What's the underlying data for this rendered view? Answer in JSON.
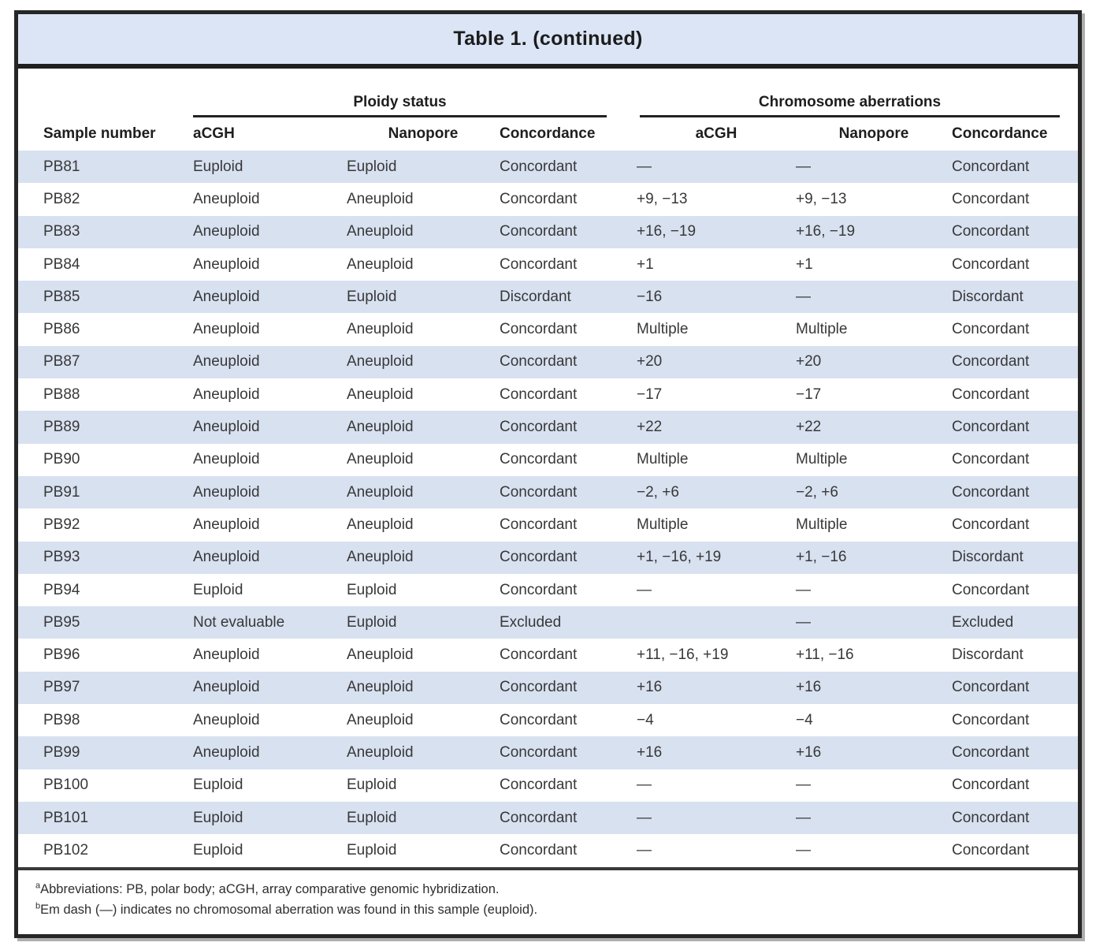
{
  "title": "Table 1. (continued)",
  "table": {
    "group_headers": [
      "Ploidy status",
      "Chromosome aberrations"
    ],
    "columns": [
      "Sample number",
      "aCGH",
      "Nanopore",
      "Concordance",
      "aCGH",
      "Nanopore",
      "Concordance"
    ],
    "rows": [
      [
        "PB81",
        "Euploid",
        "Euploid",
        "Concordant",
        "—",
        "—",
        "Concordant"
      ],
      [
        "PB82",
        "Aneuploid",
        "Aneuploid",
        "Concordant",
        "+9, −13",
        "+9, −13",
        "Concordant"
      ],
      [
        "PB83",
        "Aneuploid",
        "Aneuploid",
        "Concordant",
        "+16, −19",
        "+16, −19",
        "Concordant"
      ],
      [
        "PB84",
        "Aneuploid",
        "Aneuploid",
        "Concordant",
        "+1",
        "+1",
        "Concordant"
      ],
      [
        "PB85",
        "Aneuploid",
        "Euploid",
        "Discordant",
        "−16",
        "—",
        "Discordant"
      ],
      [
        "PB86",
        "Aneuploid",
        "Aneuploid",
        "Concordant",
        "Multiple",
        "Multiple",
        "Concordant"
      ],
      [
        "PB87",
        "Aneuploid",
        "Aneuploid",
        "Concordant",
        "+20",
        "+20",
        "Concordant"
      ],
      [
        "PB88",
        "Aneuploid",
        "Aneuploid",
        "Concordant",
        "−17",
        "−17",
        "Concordant"
      ],
      [
        "PB89",
        "Aneuploid",
        "Aneuploid",
        "Concordant",
        "+22",
        "+22",
        "Concordant"
      ],
      [
        "PB90",
        "Aneuploid",
        "Aneuploid",
        "Concordant",
        "Multiple",
        "Multiple",
        "Concordant"
      ],
      [
        "PB91",
        "Aneuploid",
        "Aneuploid",
        "Concordant",
        "−2, +6",
        "−2, +6",
        "Concordant"
      ],
      [
        "PB92",
        "Aneuploid",
        "Aneuploid",
        "Concordant",
        "Multiple",
        "Multiple",
        "Concordant"
      ],
      [
        "PB93",
        "Aneuploid",
        "Aneuploid",
        "Concordant",
        "+1, −16, +19",
        "+1, −16",
        "Discordant"
      ],
      [
        "PB94",
        "Euploid",
        "Euploid",
        "Concordant",
        "—",
        "—",
        "Concordant"
      ],
      [
        "PB95",
        "Not evaluable",
        "Euploid",
        "Excluded",
        "",
        "—",
        "Excluded"
      ],
      [
        "PB96",
        "Aneuploid",
        "Aneuploid",
        "Concordant",
        "+11, −16, +19",
        "+11, −16",
        "Discordant"
      ],
      [
        "PB97",
        "Aneuploid",
        "Aneuploid",
        "Concordant",
        "+16",
        "+16",
        "Concordant"
      ],
      [
        "PB98",
        "Aneuploid",
        "Aneuploid",
        "Concordant",
        "−4",
        "−4",
        "Concordant"
      ],
      [
        "PB99",
        "Aneuploid",
        "Aneuploid",
        "Concordant",
        "+16",
        "+16",
        "Concordant"
      ],
      [
        "PB100",
        "Euploid",
        "Euploid",
        "Concordant",
        "—",
        "—",
        "Concordant"
      ],
      [
        "PB101",
        "Euploid",
        "Euploid",
        "Concordant",
        "—",
        "—",
        "Concordant"
      ],
      [
        "PB102",
        "Euploid",
        "Euploid",
        "Concordant",
        "—",
        "—",
        "Concordant"
      ]
    ]
  },
  "footnotes": [
    {
      "sup": "a",
      "text": "Abbreviations: PB, polar body; aCGH, array comparative genomic hybridization."
    },
    {
      "sup": "b",
      "text": "Em dash (—) indicates no chromosomal aberration was found in this sample (euploid)."
    }
  ],
  "colors": {
    "banner_bg": "#dce5f5",
    "stripe_bg": "#d8e1f0",
    "frame_border": "#262626",
    "rule": "#222222",
    "text": "#383838"
  }
}
